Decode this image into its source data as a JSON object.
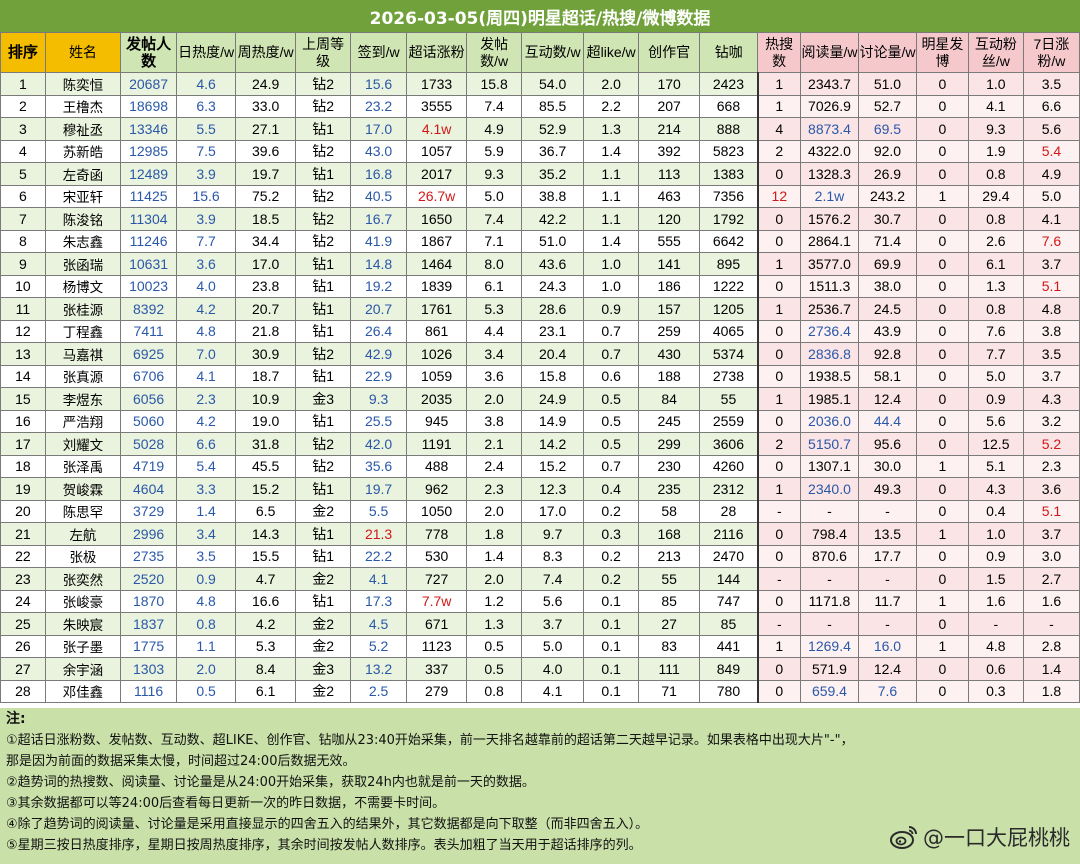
{
  "title": "2026-03-05(周四)明星超话/热搜/微博数据",
  "headers": [
    "排序",
    "姓名",
    "发帖人数",
    "日热度/w",
    "周热度/w",
    "上周等级",
    "签到/w",
    "超话涨粉",
    "发帖数/w",
    "互动数/w",
    "超like/w",
    "创作官",
    "钻咖",
    "热搜数",
    "阅读量/w",
    "讨论量/w",
    "明星发博",
    "互动粉丝/w",
    "7日涨粉/w"
  ],
  "rows": [
    [
      "1",
      "陈奕恒",
      "20687",
      "4.6",
      "24.9",
      "钻2",
      "15.6",
      "1733",
      "15.8",
      "54.0",
      "2.0",
      "170",
      "2423",
      "1",
      "2343.7",
      "51.0",
      "0",
      "1.0",
      "3.5"
    ],
    [
      "2",
      "王橹杰",
      "18698",
      "6.3",
      "33.0",
      "钻2",
      "23.2",
      "3555",
      "7.4",
      "85.5",
      "2.2",
      "207",
      "668",
      "1",
      "7026.9",
      "52.7",
      "0",
      "4.1",
      "6.6"
    ],
    [
      "3",
      "穆祉丞",
      "13346",
      "5.5",
      "27.1",
      "钻1",
      "17.0",
      "4.1w",
      "4.9",
      "52.9",
      "1.3",
      "214",
      "888",
      "4",
      "8873.4",
      "69.5",
      "0",
      "9.3",
      "5.6"
    ],
    [
      "4",
      "苏新皓",
      "12985",
      "7.5",
      "39.6",
      "钻2",
      "43.0",
      "1057",
      "5.9",
      "36.7",
      "1.4",
      "392",
      "5823",
      "2",
      "4322.0",
      "92.0",
      "0",
      "1.9",
      "5.4"
    ],
    [
      "5",
      "左奇函",
      "12489",
      "3.9",
      "19.7",
      "钻1",
      "16.8",
      "2017",
      "9.3",
      "35.2",
      "1.1",
      "113",
      "1383",
      "0",
      "1328.3",
      "26.9",
      "0",
      "0.8",
      "4.9"
    ],
    [
      "6",
      "宋亚轩",
      "11425",
      "15.6",
      "75.2",
      "钻2",
      "40.5",
      "26.7w",
      "5.0",
      "38.8",
      "1.1",
      "463",
      "7356",
      "12",
      "2.1w",
      "243.2",
      "1",
      "29.4",
      "5.0"
    ],
    [
      "7",
      "陈浚铭",
      "11304",
      "3.9",
      "18.5",
      "钻2",
      "16.7",
      "1650",
      "7.4",
      "42.2",
      "1.1",
      "120",
      "1792",
      "0",
      "1576.2",
      "30.7",
      "0",
      "0.8",
      "4.1"
    ],
    [
      "8",
      "朱志鑫",
      "11246",
      "7.7",
      "34.4",
      "钻2",
      "41.9",
      "1867",
      "7.1",
      "51.0",
      "1.4",
      "555",
      "6642",
      "0",
      "2864.1",
      "71.4",
      "0",
      "2.6",
      "7.6"
    ],
    [
      "9",
      "张函瑞",
      "10631",
      "3.6",
      "17.0",
      "钻1",
      "14.8",
      "1464",
      "8.0",
      "43.6",
      "1.0",
      "141",
      "895",
      "1",
      "3577.0",
      "69.9",
      "0",
      "6.1",
      "3.7"
    ],
    [
      "10",
      "杨博文",
      "10023",
      "4.0",
      "23.8",
      "钻1",
      "19.2",
      "1839",
      "6.1",
      "24.3",
      "1.0",
      "186",
      "1222",
      "0",
      "1511.3",
      "38.0",
      "0",
      "1.3",
      "5.1"
    ],
    [
      "11",
      "张桂源",
      "8392",
      "4.2",
      "20.7",
      "钻1",
      "20.7",
      "1761",
      "5.3",
      "28.6",
      "0.9",
      "157",
      "1205",
      "1",
      "2536.7",
      "24.5",
      "0",
      "0.8",
      "4.8"
    ],
    [
      "12",
      "丁程鑫",
      "7411",
      "4.8",
      "21.8",
      "钻1",
      "26.4",
      "861",
      "4.4",
      "23.1",
      "0.7",
      "259",
      "4065",
      "0",
      "2736.4",
      "43.9",
      "0",
      "7.6",
      "3.8"
    ],
    [
      "13",
      "马嘉祺",
      "6925",
      "7.0",
      "30.9",
      "钻2",
      "42.9",
      "1026",
      "3.4",
      "20.4",
      "0.7",
      "430",
      "5374",
      "0",
      "2836.8",
      "92.8",
      "0",
      "7.7",
      "3.5"
    ],
    [
      "14",
      "张真源",
      "6706",
      "4.1",
      "18.7",
      "钻1",
      "22.9",
      "1059",
      "3.6",
      "15.8",
      "0.6",
      "188",
      "2738",
      "0",
      "1938.5",
      "58.1",
      "0",
      "5.0",
      "3.7"
    ],
    [
      "15",
      "李煜东",
      "6056",
      "2.3",
      "10.9",
      "金3",
      "9.3",
      "2035",
      "2.0",
      "24.9",
      "0.5",
      "84",
      "55",
      "1",
      "1985.1",
      "12.4",
      "0",
      "0.9",
      "4.3"
    ],
    [
      "16",
      "严浩翔",
      "5060",
      "4.2",
      "19.0",
      "钻1",
      "25.5",
      "945",
      "3.8",
      "14.9",
      "0.5",
      "245",
      "2559",
      "0",
      "2036.0",
      "44.4",
      "0",
      "5.6",
      "3.2"
    ],
    [
      "17",
      "刘耀文",
      "5028",
      "6.6",
      "31.8",
      "钻2",
      "42.0",
      "1191",
      "2.1",
      "14.2",
      "0.5",
      "299",
      "3606",
      "2",
      "5150.7",
      "95.6",
      "0",
      "12.5",
      "5.2"
    ],
    [
      "18",
      "张泽禹",
      "4719",
      "5.4",
      "45.5",
      "钻2",
      "35.6",
      "488",
      "2.4",
      "15.2",
      "0.7",
      "230",
      "4260",
      "0",
      "1307.1",
      "30.0",
      "1",
      "5.1",
      "2.3"
    ],
    [
      "19",
      "贺峻霖",
      "4604",
      "3.3",
      "15.2",
      "钻1",
      "19.7",
      "962",
      "2.3",
      "12.3",
      "0.4",
      "235",
      "2312",
      "1",
      "2340.0",
      "49.3",
      "0",
      "4.3",
      "3.6"
    ],
    [
      "20",
      "陈思罕",
      "3729",
      "1.4",
      "6.5",
      "金2",
      "5.5",
      "1050",
      "2.0",
      "17.0",
      "0.2",
      "58",
      "28",
      "-",
      "-",
      "-",
      "0",
      "0.4",
      "5.1"
    ],
    [
      "21",
      "左航",
      "2996",
      "3.4",
      "14.3",
      "钻1",
      "21.3",
      "778",
      "1.8",
      "9.7",
      "0.3",
      "168",
      "2116",
      "0",
      "798.4",
      "13.5",
      "1",
      "1.0",
      "3.7"
    ],
    [
      "22",
      "张极",
      "2735",
      "3.5",
      "15.5",
      "钻1",
      "22.2",
      "530",
      "1.4",
      "8.3",
      "0.2",
      "213",
      "2470",
      "0",
      "870.6",
      "17.7",
      "0",
      "0.9",
      "3.0"
    ],
    [
      "23",
      "张奕然",
      "2520",
      "0.9",
      "4.7",
      "金2",
      "4.1",
      "727",
      "2.0",
      "7.4",
      "0.2",
      "55",
      "144",
      "-",
      "-",
      "-",
      "0",
      "1.5",
      "2.7"
    ],
    [
      "24",
      "张峻豪",
      "1870",
      "4.8",
      "16.6",
      "钻1",
      "17.3",
      "7.7w",
      "1.2",
      "5.6",
      "0.1",
      "85",
      "747",
      "0",
      "1171.8",
      "11.7",
      "1",
      "1.6",
      "1.6"
    ],
    [
      "25",
      "朱映宸",
      "1837",
      "0.8",
      "4.2",
      "金2",
      "4.5",
      "671",
      "1.3",
      "3.7",
      "0.1",
      "27",
      "85",
      "-",
      "-",
      "-",
      "0",
      "-",
      "-"
    ],
    [
      "26",
      "张子墨",
      "1775",
      "1.1",
      "5.3",
      "金2",
      "5.2",
      "1123",
      "0.5",
      "5.0",
      "0.1",
      "83",
      "441",
      "1",
      "1269.4",
      "16.0",
      "1",
      "4.8",
      "2.8"
    ],
    [
      "27",
      "余宇涵",
      "1303",
      "2.0",
      "8.4",
      "金3",
      "13.2",
      "337",
      "0.5",
      "4.0",
      "0.1",
      "111",
      "849",
      "0",
      "571.9",
      "12.4",
      "0",
      "0.6",
      "1.4"
    ],
    [
      "28",
      "邓佳鑫",
      "1116",
      "0.5",
      "6.1",
      "金2",
      "2.5",
      "279",
      "0.8",
      "4.1",
      "0.1",
      "71",
      "780",
      "0",
      "659.4",
      "7.6",
      "0",
      "0.3",
      "1.8"
    ]
  ],
  "notes": {
    "heading": "注:",
    "lines": [
      "①超话日涨粉数、发帖数、互动数、超LIKE、创作官、钻咖从23:40开始采集，前一天排名越靠前的超话第二天越早记录。如果表格中出现大片\"-\"，",
      "那是因为前面的数据采集太慢，时间超过24:00后数据无效。",
      "②趋势词的热搜数、阅读量、讨论量是从24:00开始采集，获取24h内也就是前一天的数据。",
      "③其余数据都可以等24:00后查看每日更新一次的昨日数据，不需要卡时间。",
      "④除了趋势词的阅读量、讨论量是采用直接显示的四舍五入的结果外，其它数据都是向下取整（而非四舍五入）。",
      "⑤星期三按日热度排序，星期日按周热度排序，其余时间按发帖人数排序。表头加粗了当天用于超话排序的列。"
    ]
  },
  "watermark": "@一口大屁桃桃",
  "colors": {
    "title_bg": "#71a13a",
    "header_bg": "#cfe5b4",
    "header_highlight": "#f5bd00",
    "pink_header": "#f5c9cc",
    "blue_text": "#2a58a8",
    "red_text": "#d01818",
    "notes_bg": "#c9e1a9"
  },
  "icons": {
    "watermark_icon": "weibo-logo-icon"
  }
}
